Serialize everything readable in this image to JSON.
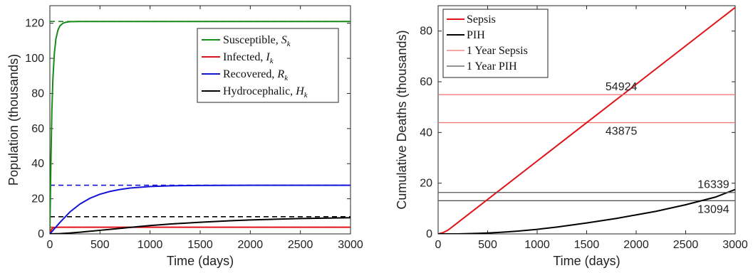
{
  "chart_data": [
    {
      "type": "line",
      "title": "",
      "xlabel": "Time (days)",
      "ylabel": "Population (thousands)",
      "xlim": [
        0,
        3000
      ],
      "ylim": [
        0,
        130
      ],
      "xticks": [
        0,
        500,
        1000,
        1500,
        2000,
        2500,
        3000
      ],
      "yticks": [
        0,
        20,
        40,
        60,
        80,
        100,
        120
      ],
      "grid": false,
      "legend_position": "top-right",
      "series": [
        {
          "name": "Susceptible, S_k",
          "label_main": "Susceptible, ",
          "label_var": "S",
          "label_sub": "k",
          "color": "#1a8a1a",
          "x": [
            0,
            10,
            20,
            30,
            45,
            60,
            80,
            100,
            130,
            160,
            200,
            300,
            500,
            1000,
            2000,
            3000
          ],
          "y": [
            0,
            40,
            70,
            88,
            103,
            111,
            116,
            118.5,
            120,
            120.6,
            120.9,
            121,
            121,
            121,
            121,
            121
          ]
        },
        {
          "name": "Infected, I_k",
          "label_main": "Infected, ",
          "label_var": "I",
          "label_sub": "k",
          "color": "#e0141a",
          "x": [
            0,
            15,
            30,
            60,
            100,
            200,
            3000
          ],
          "y": [
            0,
            2.5,
            3.4,
            3.7,
            3.8,
            3.8,
            3.8
          ]
        },
        {
          "name": "Recovered, R_k",
          "label_main": "Recovered, ",
          "label_var": "R",
          "label_sub": "k",
          "color": "#1414d8",
          "x": [
            0,
            100,
            200,
            300,
            400,
            500,
            600,
            700,
            800,
            1000,
            1200,
            1500,
            2000,
            2500,
            3000
          ],
          "y": [
            0,
            6.5,
            12.5,
            17,
            20.3,
            22.6,
            24.2,
            25.3,
            26.1,
            27,
            27.4,
            27.6,
            27.7,
            27.7,
            27.7
          ]
        },
        {
          "name": "Hydrocephalic, H_k",
          "label_main": "Hydrocephalic, ",
          "label_var": "H",
          "label_sub": "k",
          "color": "#000000",
          "x": [
            0,
            100,
            200,
            300,
            400,
            500,
            600,
            700,
            800,
            1000,
            1200,
            1500,
            1800,
            2000,
            2500,
            3000
          ],
          "y": [
            0,
            0.15,
            0.5,
            0.95,
            1.5,
            2.05,
            2.6,
            3.15,
            3.7,
            4.75,
            5.6,
            6.65,
            7.5,
            7.95,
            8.75,
            9.2
          ]
        }
      ],
      "reference_lines": [
        {
          "y": 121,
          "color": "#1a8a1a",
          "style": "dashed"
        },
        {
          "y": 27.7,
          "color": "#1414d8",
          "style": "dashed"
        },
        {
          "y": 9.8,
          "color": "#000000",
          "style": "dashed"
        },
        {
          "y": 3.8,
          "color": "#e0141a",
          "style": "dashed"
        }
      ]
    },
    {
      "type": "line",
      "title": "",
      "xlabel": "Time (days)",
      "ylabel": "Cumulative Deaths (thousands)",
      "xlim": [
        0,
        3000
      ],
      "ylim": [
        0,
        90
      ],
      "xticks": [
        0,
        500,
        1000,
        1500,
        2000,
        2500,
        3000
      ],
      "yticks": [
        0,
        20,
        40,
        60,
        80
      ],
      "grid": false,
      "legend_position": "top-left",
      "series": [
        {
          "name": "Sepsis",
          "color": "#e0141a",
          "width": 2,
          "x": [
            0,
            50,
            100,
            150,
            200,
            3000
          ],
          "y": [
            0,
            0.5,
            1.5,
            3.0,
            4.5,
            89.3
          ]
        },
        {
          "name": "PIH",
          "color": "#000000",
          "width": 2,
          "x": [
            0,
            200,
            300,
            400,
            500,
            600,
            700,
            800,
            1000,
            1200,
            1500,
            1800,
            2000,
            2200,
            2500,
            2800,
            3000
          ],
          "y": [
            0,
            0,
            0.1,
            0.2,
            0.35,
            0.55,
            0.8,
            1.1,
            1.8,
            2.7,
            4.3,
            6.1,
            7.5,
            8.9,
            11.5,
            14.5,
            17.5
          ]
        },
        {
          "name": "1 Year Sepsis",
          "color": "#f07070",
          "width": 1.3,
          "x": [
            0,
            3000
          ],
          "y": [
            54.924,
            54.924
          ]
        },
        {
          "name": "1 Year PIH",
          "color": "#555555",
          "width": 1.3,
          "x": [
            0,
            3000
          ],
          "y": [
            16.339,
            16.339
          ]
        }
      ],
      "extra_lines": [
        {
          "y": 43.875,
          "color": "#f07070"
        },
        {
          "y": 13.094,
          "color": "#555555"
        }
      ],
      "annotations": [
        {
          "text": "54924",
          "x": 1850,
          "y": 54.924,
          "pos": "above"
        },
        {
          "text": "43875",
          "x": 1850,
          "y": 43.875,
          "pos": "below"
        },
        {
          "text": "16339",
          "x": 2780,
          "y": 16.339,
          "pos": "above"
        },
        {
          "text": "13094",
          "x": 2780,
          "y": 13.094,
          "pos": "below"
        }
      ]
    }
  ]
}
